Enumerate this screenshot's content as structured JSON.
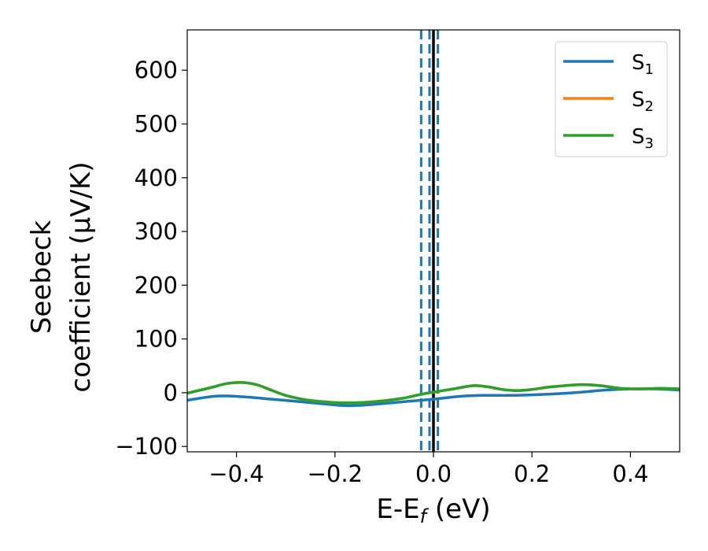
{
  "chart_data": {
    "type": "line",
    "xlabel": "E-E",
    "xlabel_sub": "f",
    "xlabel_unit": " (eV)",
    "ylabel_line1": "Seebeck",
    "ylabel_line2": "coefficient  (μV/K)",
    "xlim": [
      -0.5,
      0.5
    ],
    "ylim": [
      -110,
      675
    ],
    "x_ticks": [
      -0.4,
      -0.2,
      0.0,
      0.2,
      0.4
    ],
    "x_tick_labels": [
      "−0.4",
      "−0.2",
      "0.0",
      "0.2",
      "0.4"
    ],
    "y_ticks": [
      -100,
      0,
      100,
      200,
      300,
      400,
      500,
      600
    ],
    "y_tick_labels": [
      "−100",
      "0",
      "100",
      "200",
      "300",
      "400",
      "500",
      "600"
    ],
    "legend_position": "top-right",
    "vertical_lines": [
      {
        "x": -0.025,
        "style": "dashed",
        "color": "#1f77b4"
      },
      {
        "x": -0.008,
        "style": "dashed",
        "color": "#1f77b4"
      },
      {
        "x": 0.009,
        "style": "dashed",
        "color": "#1f77b4"
      },
      {
        "x": 0.0,
        "style": "solid",
        "color": "#000000"
      }
    ],
    "series": [
      {
        "name": "S",
        "sub": "1",
        "color": "#1f77b4",
        "x": [
          -0.5,
          -0.45,
          -0.42,
          -0.38,
          -0.33,
          -0.28,
          -0.22,
          -0.18,
          -0.14,
          -0.1,
          -0.05,
          0.0,
          0.05,
          0.1,
          0.15,
          0.2,
          0.25,
          0.3,
          0.35,
          0.4,
          0.45,
          0.5
        ],
        "y": [
          -14,
          -7,
          -6,
          -8,
          -12,
          -16,
          -21,
          -24,
          -23,
          -20,
          -16,
          -12,
          -7,
          -5,
          -5,
          -4,
          -2,
          1,
          5,
          7,
          7,
          5
        ]
      },
      {
        "name": "S",
        "sub": "2",
        "color": "#ff7f0e",
        "x": [
          -0.5,
          -0.45,
          -0.42,
          -0.39,
          -0.36,
          -0.33,
          -0.3,
          -0.26,
          -0.22,
          -0.18,
          -0.14,
          -0.1,
          -0.06,
          -0.02,
          0.0,
          0.04,
          0.08,
          0.11,
          0.14,
          0.17,
          0.2,
          0.24,
          0.3,
          0.34,
          0.38,
          0.42,
          0.46,
          0.5
        ],
        "y": [
          -1,
          10,
          17,
          19,
          15,
          5,
          -5,
          -13,
          -17,
          -19,
          -18,
          -15,
          -10,
          -2,
          1,
          7,
          13,
          11,
          6,
          4,
          6,
          11,
          15,
          13,
          8,
          7,
          8,
          7
        ]
      },
      {
        "name": "S",
        "sub": "3",
        "color": "#2ca02c",
        "x": [
          -0.5,
          -0.45,
          -0.42,
          -0.39,
          -0.36,
          -0.33,
          -0.3,
          -0.26,
          -0.22,
          -0.18,
          -0.14,
          -0.1,
          -0.06,
          -0.02,
          0.0,
          0.04,
          0.08,
          0.11,
          0.14,
          0.17,
          0.2,
          0.24,
          0.3,
          0.34,
          0.38,
          0.42,
          0.46,
          0.5
        ],
        "y": [
          -1,
          10,
          17,
          19,
          15,
          5,
          -5,
          -13,
          -17,
          -19,
          -18,
          -15,
          -10,
          -2,
          1,
          7,
          13,
          11,
          6,
          4,
          6,
          11,
          15,
          13,
          8,
          7,
          8,
          7
        ]
      }
    ]
  }
}
